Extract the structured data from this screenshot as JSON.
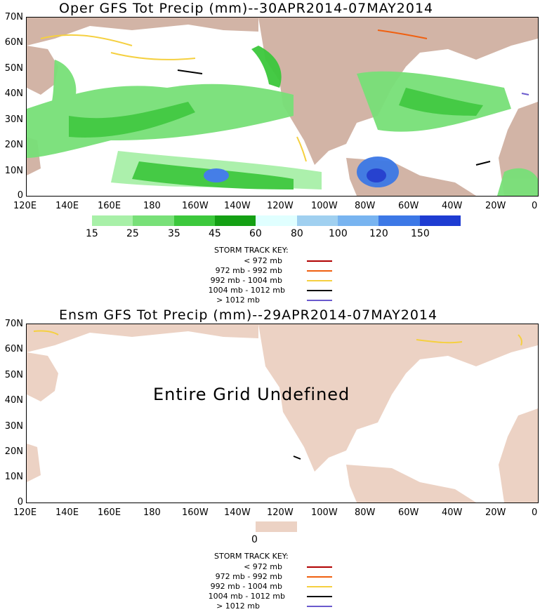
{
  "panels": [
    {
      "title": "Oper GFS Tot Precip (mm)--30APR2014-07MAY2014",
      "y_ticks": [
        "70N",
        "60N",
        "50N",
        "40N",
        "30N",
        "20N",
        "10N",
        "0"
      ],
      "x_ticks": [
        "120E",
        "140E",
        "160E",
        "180",
        "160W",
        "140W",
        "120W",
        "100W",
        "80W",
        "60W",
        "40W",
        "20W",
        "0"
      ],
      "legend": {
        "colors": [
          "#a8f0a8",
          "#78e078",
          "#3cc83c",
          "#14a014",
          "#e0ffff",
          "#a0d0f0",
          "#78b4f0",
          "#3c78e6",
          "#1e3cd2"
        ],
        "labels": [
          "15",
          "25",
          "35",
          "45",
          "60",
          "80",
          "100",
          "120",
          "150"
        ]
      }
    },
    {
      "title": "Ensm GFS Tot Precip (mm)--29APR2014-07MAY2014",
      "y_ticks": [
        "70N",
        "60N",
        "50N",
        "40N",
        "30N",
        "20N",
        "10N",
        "0"
      ],
      "x_ticks": [
        "120E",
        "140E",
        "160E",
        "180",
        "160W",
        "140W",
        "120W",
        "100W",
        "80W",
        "60W",
        "40W",
        "20W",
        "0"
      ],
      "overlay": "Entire Grid Undefined",
      "legend": {
        "colors": [
          "#ecd2c4"
        ],
        "labels": [
          "0"
        ]
      }
    }
  ],
  "storm_key": {
    "title": "STORM TRACK KEY:",
    "rows": [
      {
        "label": "< 972 mb",
        "color": "#b00000"
      },
      {
        "label": "972 mb - 992 mb",
        "color": "#f06010"
      },
      {
        "label": "992 mb - 1004 mb",
        "color": "#f5d040"
      },
      {
        "label": "1004 mb - 1012 mb",
        "color": "#000000"
      },
      {
        "label": "> 1012 mb",
        "color": "#6a5acd"
      }
    ]
  },
  "colors": {
    "land": "#d2b4a6",
    "land_light": "#ecd2c4",
    "ocean": "#ffffff"
  }
}
